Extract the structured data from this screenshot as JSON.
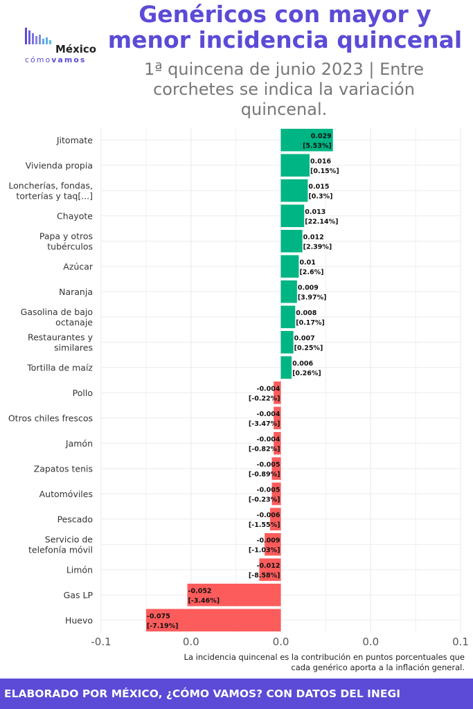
{
  "header": {
    "title_line1": "Genéricos con mayor y",
    "title_line2": "menor incidencia quincenal",
    "subtitle_line1": "1ª quincena de junio 2023 | Entre",
    "subtitle_line2": "corchetes se indica la variación",
    "subtitle_line3": "quincenal."
  },
  "logo": {
    "name": "México",
    "tag_light": "cómo",
    "tag_bold": "vamos"
  },
  "colors": {
    "positive": "#00b584",
    "negative": "#fd5c5c",
    "accent": "#5b4bd6"
  },
  "footnote": {
    "line1": "La incidencia quincenal es la contribución en puntos porcentuales que",
    "line2": "cada genérico aporta a la inflación general."
  },
  "footer": {
    "text": "ELABORADO POR MÉXICO, ¿CÓMO VAMOS? CON DATOS DEL INEGI"
  },
  "chart_data": {
    "type": "bar",
    "orientation": "horizontal",
    "xlim": [
      -0.1,
      0.1
    ],
    "x_tick_labels": [
      "-0.1",
      "0.0",
      "0.0",
      "0.0",
      "0.1"
    ],
    "x_ticks": [
      -0.1,
      -0.05,
      0,
      0.05,
      0.1
    ],
    "grid": true,
    "categories": [
      [
        "Jitomate"
      ],
      [
        "Vivienda propia"
      ],
      [
        "Loncherías, fondas,",
        "torterías y taq[...]"
      ],
      [
        "Chayote"
      ],
      [
        "Papa y otros",
        "tubérculos"
      ],
      [
        "Azúcar"
      ],
      [
        "Naranja"
      ],
      [
        "Gasolina de bajo",
        "octanaje"
      ],
      [
        "Restaurantes y",
        "similares"
      ],
      [
        "Tortilla de maíz"
      ],
      [
        "Pollo"
      ],
      [
        "Otros chiles frescos"
      ],
      [
        "Jamón"
      ],
      [
        "Zapatos tenis"
      ],
      [
        "Automóviles"
      ],
      [
        "Pescado"
      ],
      [
        "Servicio de",
        "telefonía móvil"
      ],
      [
        "Limón"
      ],
      [
        "Gas LP"
      ],
      [
        "Huevo"
      ]
    ],
    "values": [
      0.029,
      0.016,
      0.015,
      0.013,
      0.012,
      0.01,
      0.009,
      0.008,
      0.007,
      0.006,
      -0.004,
      -0.004,
      -0.004,
      -0.005,
      -0.005,
      -0.006,
      -0.009,
      -0.012,
      -0.052,
      -0.075
    ],
    "value_labels": [
      "0.029",
      "0.016",
      "0.015",
      "0.013",
      "0.012",
      "0.01",
      "0.009",
      "0.008",
      "0.007",
      "0.006",
      "-0.004",
      "-0.004",
      "-0.004",
      "-0.005",
      "-0.005",
      "-0.006",
      "-0.009",
      "-0.012",
      "-0.052",
      "-0.075"
    ],
    "variation_labels": [
      "[5.53%]",
      "[0.15%]",
      "[0.3%]",
      "[22.14%]",
      "[2.39%]",
      "[2.6%]",
      "[3.97%]",
      "[0.17%]",
      "[0.25%]",
      "[0.26%]",
      "[-0.22%]",
      "[-3.47%]",
      "[-0.82%]",
      "[-0.89%]",
      "[-0.23%]",
      "[-1.55%]",
      "[-1.03%]",
      "[-8.58%]",
      "[-3.46%]",
      "[-7.19%]"
    ]
  }
}
